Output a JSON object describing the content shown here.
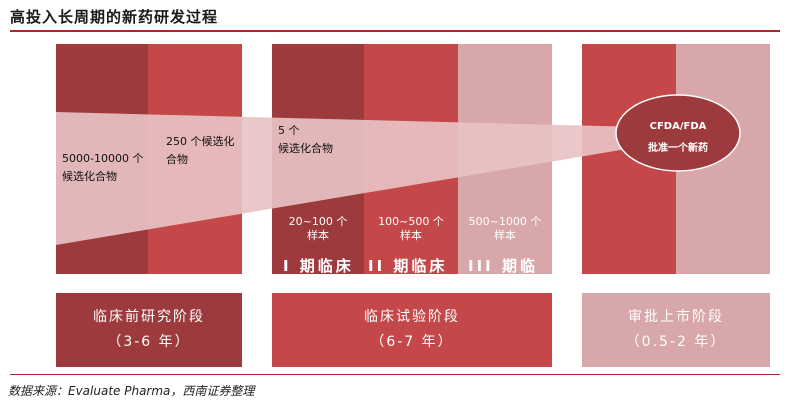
{
  "title": "高投入长周期的新药研发过程",
  "stages": {
    "preclinical": {
      "count_start": "5000-10000 个",
      "count_start_2": "候选化合物",
      "count_mid": "250 个候选化",
      "count_mid_2": "合物"
    },
    "clinical": {
      "count": "5 个",
      "count_2": "候选化合物",
      "phase1_sample": "20~100 个",
      "phase1_sample_2": "样本",
      "phase1_label": "I 期临床",
      "phase2_sample": "100~500 个",
      "phase2_sample_2": "样本",
      "phase2_label": "II 期临床",
      "phase3_sample": "500~1000 个",
      "phase3_sample_2": "样本",
      "phase3_label": "III 期临"
    },
    "approval": {
      "circle_line1": "CFDA/FDA",
      "circle_line2": "批准一个新药"
    }
  },
  "phases": [
    {
      "name": "临床前研究阶段",
      "duration": "（3-6 年）"
    },
    {
      "name": "临床试验阶段",
      "duration": "（6-7 年）"
    },
    {
      "name": "审批上市阶段",
      "duration": "（0.5-2 年）"
    }
  ],
  "source": "数据来源：Evaluate Pharma，西南证券整理",
  "colors": {
    "dark": "#9c3a3d",
    "mid": "#c4474a",
    "light": "#d8a7a9",
    "accent": "#a9282a"
  }
}
